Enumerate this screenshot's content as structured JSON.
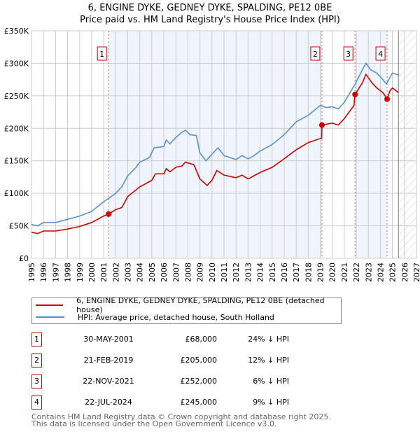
{
  "chart_data": {
    "type": "line",
    "title": "6, ENGINE DYKE, GEDNEY DYKE, SPALDING, PE12 0BE",
    "subtitle": "Price paid vs. HM Land Registry's House Price Index (HPI)",
    "xlim": [
      1995,
      2027
    ],
    "ylim": [
      0,
      350000
    ],
    "x_ticks": [
      "1995",
      "1996",
      "1997",
      "1998",
      "1999",
      "2000",
      "2001",
      "2002",
      "2003",
      "2004",
      "2005",
      "2006",
      "2007",
      "2008",
      "2009",
      "2010",
      "2011",
      "2012",
      "2013",
      "2014",
      "2015",
      "2016",
      "2017",
      "2018",
      "2019",
      "2020",
      "2021",
      "2022",
      "2023",
      "2024",
      "2025",
      "2026",
      "2027"
    ],
    "y_ticks": [
      {
        "v": 0,
        "label": "£0"
      },
      {
        "v": 50000,
        "label": "£50K"
      },
      {
        "v": 100000,
        "label": "£100K"
      },
      {
        "v": 150000,
        "label": "£150K"
      },
      {
        "v": 200000,
        "label": "£200K"
      },
      {
        "v": 250000,
        "label": "£250K"
      },
      {
        "v": 300000,
        "label": "£300K"
      },
      {
        "v": 350000,
        "label": "£350K"
      }
    ],
    "grid": true,
    "forecast_from": 2025.5,
    "series": [
      {
        "name": "6, ENGINE DYKE, GEDNEY DYKE, SPALDING, PE12 0BE (detached house)",
        "color": "#cc0000",
        "x": [
          1995,
          1995.5,
          1996,
          1997,
          1998,
          1999,
          2000,
          2001,
          2001.41,
          2002,
          2002.5,
          2003,
          2004,
          2005,
          2005.3,
          2006,
          2006.2,
          2006.5,
          2007,
          2007.5,
          2007.8,
          2008.5,
          2009,
          2009.6,
          2010,
          2010.4,
          2011,
          2012,
          2012.5,
          2013,
          2014,
          2015,
          2016,
          2016.5,
          2017,
          2018,
          2019.12,
          2019.14,
          2020,
          2020.5,
          2021,
          2021.8,
          2021.89,
          2022.5,
          2022.8,
          2023.3,
          2023.7,
          2024.2,
          2024.56,
          2024.8,
          2025,
          2025.5
        ],
        "y": [
          40000,
          38000,
          42000,
          42000,
          45000,
          49000,
          55000,
          65000,
          68000,
          75000,
          78000,
          95000,
          110000,
          120000,
          130000,
          130000,
          138000,
          133000,
          140000,
          142000,
          148000,
          144000,
          122000,
          112000,
          120000,
          135000,
          128000,
          124000,
          128000,
          122000,
          132000,
          140000,
          153000,
          160000,
          167000,
          178000,
          185000,
          205000,
          208000,
          205000,
          215000,
          235000,
          252000,
          270000,
          283000,
          270000,
          262000,
          255000,
          245000,
          258000,
          262000,
          255000
        ]
      },
      {
        "name": "HPI: Average price, detached house, South Holland",
        "color": "#5b8fd0",
        "x": [
          1995,
          1995.5,
          1996,
          1997,
          1998,
          1999,
          2000,
          2001,
          2001.4,
          2002,
          2002.5,
          2003,
          2003.7,
          2004,
          2004.8,
          2005.2,
          2006,
          2006.2,
          2006.5,
          2007,
          2007.5,
          2007.8,
          2008.2,
          2008.7,
          2009,
          2009.5,
          2010,
          2010.5,
          2011,
          2012,
          2012.5,
          2013,
          2013.5,
          2014,
          2015,
          2016,
          2016.5,
          2017,
          2018,
          2019,
          2019.5,
          2020,
          2020.5,
          2021,
          2021.9,
          2022.5,
          2022.8,
          2023.2,
          2023.7,
          2024.2,
          2024.5,
          2025,
          2025.5
        ],
        "y": [
          52000,
          50000,
          55000,
          55000,
          60000,
          65000,
          72000,
          87000,
          92000,
          100000,
          110000,
          127000,
          140000,
          148000,
          155000,
          170000,
          172000,
          182000,
          176000,
          186000,
          194000,
          197000,
          190000,
          189000,
          162000,
          150000,
          160000,
          170000,
          158000,
          152000,
          158000,
          153000,
          158000,
          165000,
          175000,
          190000,
          200000,
          210000,
          220000,
          235000,
          232000,
          233000,
          230000,
          240000,
          268000,
          290000,
          300000,
          290000,
          285000,
          275000,
          268000,
          285000,
          282000
        ]
      }
    ],
    "sales": [
      {
        "id": "1",
        "x": 2001.41,
        "date": "30-MAY-2001",
        "price": 68000,
        "price_label": "£68,000",
        "hpi": "24% ↓ HPI"
      },
      {
        "id": "2",
        "x": 2019.14,
        "date": "21-FEB-2019",
        "price": 205000,
        "price_label": "£205,000",
        "hpi": "12% ↓ HPI"
      },
      {
        "id": "3",
        "x": 2021.89,
        "date": "22-NOV-2021",
        "price": 252000,
        "price_label": "£252,000",
        "hpi": "6% ↓ HPI"
      },
      {
        "id": "4",
        "x": 2024.56,
        "date": "22-JUL-2024",
        "price": 245000,
        "price_label": "£245,000",
        "hpi": "9% ↓ HPI"
      }
    ]
  },
  "footer": {
    "line1": "Contains HM Land Registry data © Crown copyright and database right 2025.",
    "line2": "This data is licensed under the Open Government Licence v3.0."
  }
}
